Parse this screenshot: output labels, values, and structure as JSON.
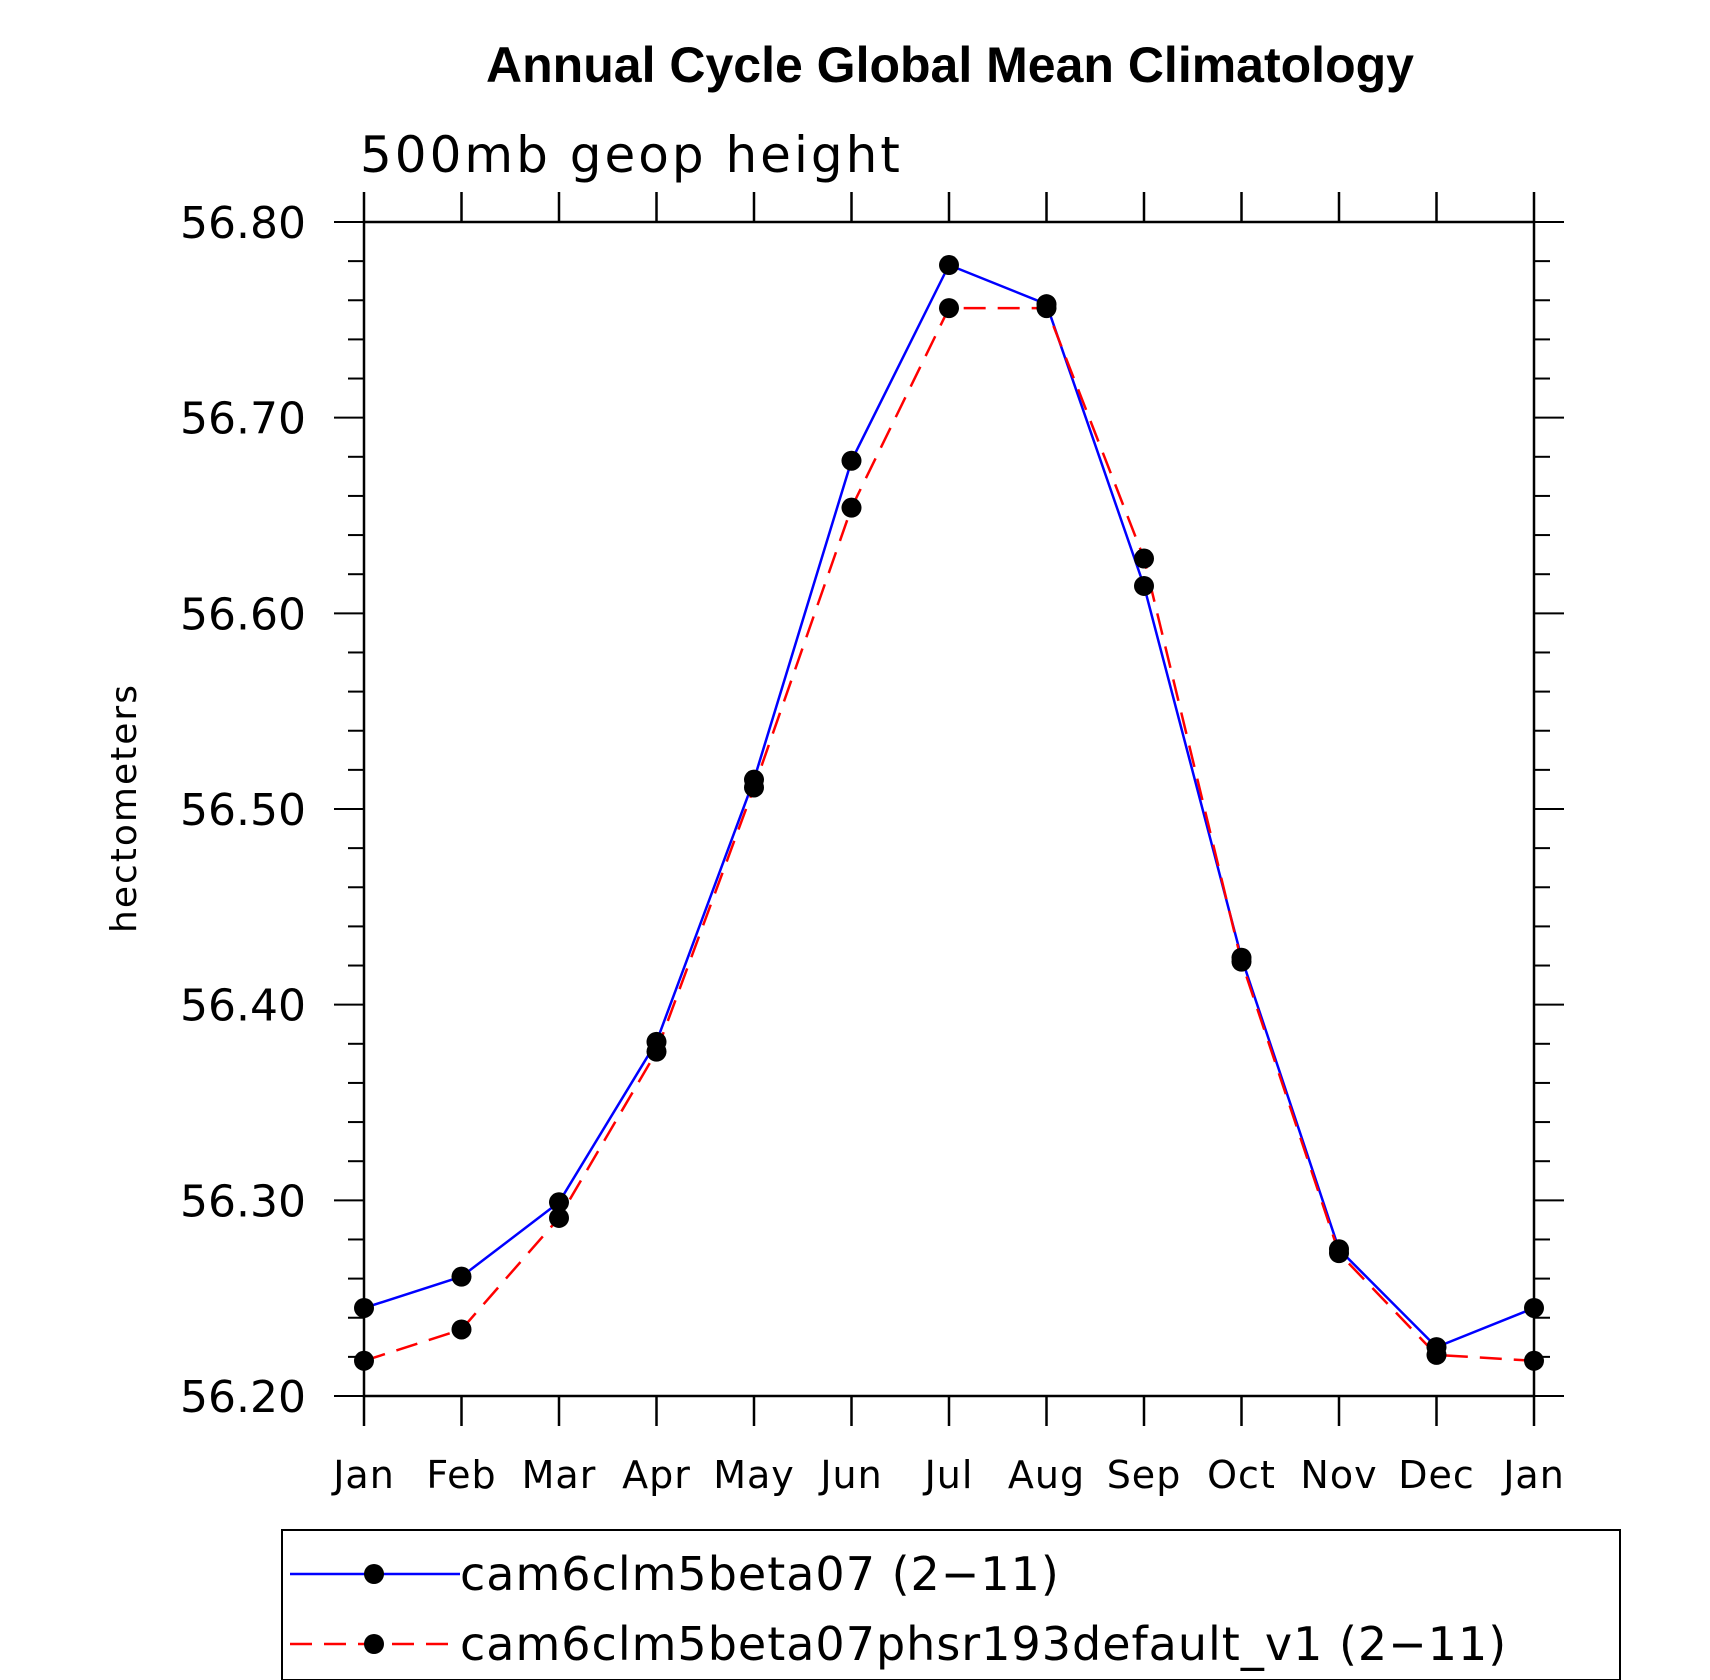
{
  "chart_data": {
    "type": "line",
    "title": "Annual Cycle Global Mean Climatology",
    "subtitle": "500mb geop height",
    "ylabel": "hectometers",
    "xlabel": "",
    "categories": [
      "Jan",
      "Feb",
      "Mar",
      "Apr",
      "May",
      "Jun",
      "Jul",
      "Aug",
      "Sep",
      "Oct",
      "Nov",
      "Dec",
      "Jan"
    ],
    "ylim": [
      56.2,
      56.8
    ],
    "yticks": [
      "56.20",
      "56.30",
      "56.40",
      "56.50",
      "56.60",
      "56.70",
      "56.80"
    ],
    "ytick_values": [
      56.2,
      56.3,
      56.4,
      56.5,
      56.6,
      56.7,
      56.8
    ],
    "grid": false,
    "legend_position": "bottom",
    "series": [
      {
        "name": "cam6clm5beta07 (2−11)",
        "color": "#0000ff",
        "dash": "solid",
        "marker_color": "#000000",
        "values": [
          56.245,
          56.261,
          56.299,
          56.381,
          56.515,
          56.678,
          56.778,
          56.758,
          56.614,
          56.424,
          56.275,
          56.225,
          56.245
        ]
      },
      {
        "name": "cam6clm5beta07phsr193default_v1 (2−11)",
        "color": "#ff0000",
        "dash": "dashed",
        "marker_color": "#000000",
        "values": [
          56.218,
          56.234,
          56.291,
          56.376,
          56.511,
          56.654,
          56.756,
          56.756,
          56.628,
          56.422,
          56.273,
          56.221,
          56.218
        ]
      }
    ]
  }
}
